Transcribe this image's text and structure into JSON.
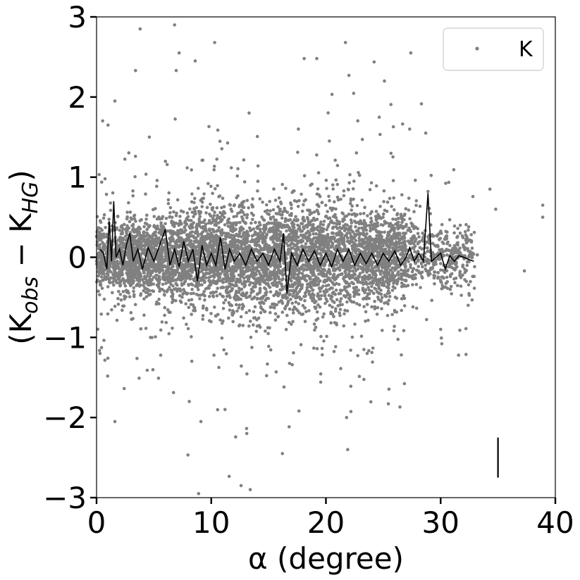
{
  "chart_data": {
    "type": "scatter",
    "xlabel": "α (degree)",
    "ylabel": "(K_obs − K_HG)",
    "xlim": [
      0,
      40
    ],
    "ylim": [
      -3,
      3
    ],
    "xticks": [
      0,
      10,
      20,
      30,
      40
    ],
    "xtick_labels": [
      "0",
      "10",
      "20",
      "30",
      "40"
    ],
    "yticks": [
      -3,
      -2,
      -1,
      0,
      1,
      2,
      3
    ],
    "ytick_labels": [
      "−3",
      "−2",
      "−1",
      "0",
      "1",
      "2",
      "3"
    ],
    "grid": false,
    "legend": {
      "position": "top-right",
      "entries": [
        "K"
      ]
    },
    "colors": {
      "points": "#808080",
      "median_line": "#000000",
      "axes": "#000000"
    },
    "series": [
      {
        "name": "K",
        "kind": "scatter",
        "cloud": {
          "x_range": [
            0,
            33
          ],
          "typical_spread": 0.3,
          "approx_points": 6000
        },
        "outliers": [
          [
            0.3,
            -1.2
          ],
          [
            1.0,
            1.65
          ],
          [
            1.6,
            1.95
          ],
          [
            1.6,
            -2.05
          ],
          [
            3.4,
            2.33
          ],
          [
            3.8,
            2.85
          ],
          [
            4.6,
            1.5
          ],
          [
            6.8,
            2.9
          ],
          [
            7.2,
            2.55
          ],
          [
            8.6,
            2.45
          ],
          [
            9.1,
            -2.05
          ],
          [
            10.3,
            2.68
          ],
          [
            11.2,
            -1.9
          ],
          [
            12.6,
            -2.85
          ],
          [
            13.4,
            -2.9
          ],
          [
            13.1,
            -2.2
          ],
          [
            13.3,
            1.8
          ],
          [
            16.2,
            -2.45
          ],
          [
            17.6,
            1.6
          ],
          [
            18.1,
            2.48
          ],
          [
            19.2,
            2.48
          ],
          [
            20.3,
            1.45
          ],
          [
            21.7,
            2.68
          ],
          [
            22.0,
            2.27
          ],
          [
            21.9,
            -2.4
          ],
          [
            21.8,
            -2.0
          ],
          [
            25.1,
            2.2
          ],
          [
            27.4,
            2.55
          ],
          [
            27.3,
            1.6
          ],
          [
            28.7,
            1.55
          ],
          [
            30.0,
            -0.9
          ],
          [
            30.1,
            -1.08
          ],
          [
            34.3,
            0.85
          ],
          [
            34.8,
            0.6
          ],
          [
            37.3,
            -0.17
          ],
          [
            38.9,
            0.65
          ],
          [
            38.9,
            0.5
          ],
          [
            33.2,
            0.03
          ],
          [
            32.4,
            -0.6
          ],
          [
            8.9,
            -2.95
          ]
        ]
      },
      {
        "name": "",
        "kind": "line",
        "points": [
          [
            0.3,
            0.1
          ],
          [
            0.6,
            0.05
          ],
          [
            0.9,
            -0.15
          ],
          [
            1.1,
            0.45
          ],
          [
            1.3,
            -0.05
          ],
          [
            1.5,
            0.7
          ],
          [
            1.7,
            0.0
          ],
          [
            2.0,
            0.1
          ],
          [
            2.3,
            -0.1
          ],
          [
            2.6,
            0.15
          ],
          [
            2.9,
            0.3
          ],
          [
            3.2,
            -0.05
          ],
          [
            3.6,
            0.1
          ],
          [
            4.0,
            -0.15
          ],
          [
            4.5,
            0.12
          ],
          [
            5.0,
            -0.05
          ],
          [
            5.5,
            0.15
          ],
          [
            6.0,
            0.35
          ],
          [
            6.4,
            -0.1
          ],
          [
            6.8,
            0.1
          ],
          [
            7.2,
            -0.12
          ],
          [
            7.6,
            0.2
          ],
          [
            8.0,
            -0.05
          ],
          [
            8.4,
            0.1
          ],
          [
            8.8,
            -0.3
          ],
          [
            9.2,
            0.15
          ],
          [
            9.6,
            -0.1
          ],
          [
            10.0,
            0.05
          ],
          [
            10.4,
            -0.1
          ],
          [
            10.8,
            0.25
          ],
          [
            11.2,
            -0.15
          ],
          [
            11.6,
            0.1
          ],
          [
            12.0,
            -0.05
          ],
          [
            12.5,
            0.05
          ],
          [
            13.0,
            -0.1
          ],
          [
            13.5,
            0.1
          ],
          [
            14.0,
            -0.05
          ],
          [
            14.5,
            0.05
          ],
          [
            15.0,
            -0.1
          ],
          [
            15.5,
            0.1
          ],
          [
            16.0,
            -0.05
          ],
          [
            16.3,
            0.3
          ],
          [
            16.6,
            -0.45
          ],
          [
            17.0,
            0.05
          ],
          [
            17.5,
            -0.1
          ],
          [
            18.0,
            0.1
          ],
          [
            18.5,
            -0.05
          ],
          [
            19.0,
            0.08
          ],
          [
            19.5,
            -0.1
          ],
          [
            20.0,
            0.05
          ],
          [
            20.5,
            -0.12
          ],
          [
            21.0,
            0.1
          ],
          [
            21.5,
            -0.05
          ],
          [
            22.0,
            0.1
          ],
          [
            22.5,
            -0.1
          ],
          [
            23.0,
            0.05
          ],
          [
            23.5,
            -0.08
          ],
          [
            24.0,
            0.05
          ],
          [
            24.5,
            -0.1
          ],
          [
            25.0,
            0.05
          ],
          [
            25.5,
            -0.05
          ],
          [
            26.0,
            0.08
          ],
          [
            26.5,
            -0.1
          ],
          [
            27.0,
            0.0
          ],
          [
            27.3,
            0.12
          ],
          [
            27.7,
            -0.05
          ],
          [
            28.1,
            0.05
          ],
          [
            28.5,
            -0.05
          ],
          [
            28.9,
            0.8
          ],
          [
            29.2,
            -0.05
          ],
          [
            29.6,
            0.0
          ],
          [
            30.0,
            0.05
          ],
          [
            30.4,
            -0.15
          ],
          [
            30.8,
            0.02
          ],
          [
            31.2,
            -0.05
          ],
          [
            31.6,
            0.02
          ],
          [
            32.0,
            0.0
          ],
          [
            32.5,
            -0.03
          ],
          [
            32.9,
            -0.05
          ]
        ]
      }
    ],
    "error_bar": {
      "x": 35,
      "y_low": -2.75,
      "y_high": -2.25
    }
  }
}
